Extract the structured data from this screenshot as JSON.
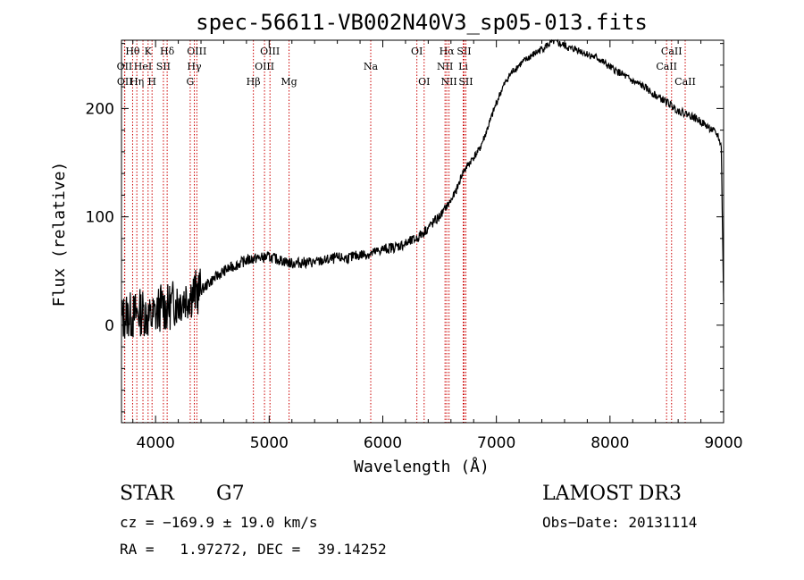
{
  "chart_data": {
    "type": "line",
    "title": "spec-56611-VB002N40V3_sp05-013.fits",
    "xlabel": "Wavelength (Å)",
    "ylabel": "Flux (relative)",
    "xlim": [
      3700,
      9000
    ],
    "ylim": [
      -90,
      263
    ],
    "x_ticks": [
      4000,
      5000,
      6000,
      7000,
      8000,
      9000
    ],
    "x_tick_labels": [
      "4000",
      "5000",
      "6000",
      "7000",
      "8000",
      "9000"
    ],
    "y_ticks": [
      0,
      100,
      200
    ],
    "y_tick_labels": [
      "0",
      "100",
      "200"
    ],
    "series": [
      {
        "name": "spectrum",
        "x": [
          3700,
          3750,
          3800,
          3850,
          3900,
          3950,
          4000,
          4050,
          4100,
          4150,
          4200,
          4250,
          4300,
          4350,
          4400,
          4500,
          4600,
          4700,
          4800,
          4900,
          5000,
          5100,
          5200,
          5300,
          5400,
          5500,
          5600,
          5700,
          5800,
          5900,
          6000,
          6100,
          6200,
          6300,
          6400,
          6500,
          6550,
          6600,
          6650,
          6700,
          6750,
          6800,
          6850,
          6900,
          6950,
          7000,
          7050,
          7100,
          7150,
          7200,
          7300,
          7400,
          7500,
          7550,
          7600,
          7650,
          7700,
          7800,
          7900,
          8000,
          8100,
          8200,
          8300,
          8400,
          8500,
          8600,
          8700,
          8800,
          8900,
          8950,
          8980,
          9000
        ],
        "y": [
          5,
          10,
          8,
          12,
          12,
          5,
          10,
          18,
          15,
          20,
          22,
          25,
          28,
          30,
          32,
          42,
          50,
          55,
          60,
          62,
          63,
          60,
          57,
          58,
          58,
          60,
          62,
          62,
          65,
          66,
          70,
          72,
          75,
          80,
          90,
          100,
          108,
          115,
          125,
          140,
          148,
          155,
          162,
          175,
          190,
          205,
          218,
          228,
          235,
          240,
          248,
          255,
          262,
          260,
          258,
          255,
          255,
          250,
          246,
          238,
          232,
          225,
          220,
          212,
          206,
          198,
          194,
          188,
          180,
          175,
          165,
          20
        ]
      }
    ],
    "line_markers": [
      {
        "label": "Hθ",
        "x": 3798,
        "row": 1
      },
      {
        "label": "OII",
        "x": 3727,
        "row": 2
      },
      {
        "label": "OII",
        "x": 3729,
        "row": 3
      },
      {
        "label": "K",
        "x": 3934,
        "row": 1
      },
      {
        "label": "HeI",
        "x": 3889,
        "row": 2
      },
      {
        "label": "Hη",
        "x": 3835,
        "row": 3
      },
      {
        "label": "SII",
        "x": 4069,
        "row": 2
      },
      {
        "label": "H",
        "x": 3969,
        "row": 3
      },
      {
        "label": "Hδ",
        "x": 4102,
        "row": 1
      },
      {
        "label": "OIII",
        "x": 4363,
        "row": 1
      },
      {
        "label": "Hγ",
        "x": 4341,
        "row": 2
      },
      {
        "label": "G",
        "x": 4305,
        "row": 3
      },
      {
        "label": "OIII",
        "x": 5007,
        "row": 1
      },
      {
        "label": "OIII",
        "x": 4959,
        "row": 2
      },
      {
        "label": "Hβ",
        "x": 4861,
        "row": 3
      },
      {
        "label": "Mg",
        "x": 5175,
        "row": 3
      },
      {
        "label": "Na",
        "x": 5894,
        "row": 2
      },
      {
        "label": "OI",
        "x": 6300,
        "row": 1
      },
      {
        "label": "OI",
        "x": 6364,
        "row": 3
      },
      {
        "label": "Hα",
        "x": 6563,
        "row": 1
      },
      {
        "label": "SII",
        "x": 6716,
        "row": 1
      },
      {
        "label": "NII",
        "x": 6548,
        "row": 2
      },
      {
        "label": "Li",
        "x": 6708,
        "row": 2
      },
      {
        "label": "NII",
        "x": 6583,
        "row": 3
      },
      {
        "label": "SII",
        "x": 6731,
        "row": 3
      },
      {
        "label": "CaII",
        "x": 8542,
        "row": 1
      },
      {
        "label": "CaII",
        "x": 8498,
        "row": 2
      },
      {
        "label": "CaII",
        "x": 8662,
        "row": 3
      }
    ]
  },
  "info": {
    "object_class": "STAR",
    "subclass": "G7",
    "survey": "LAMOST DR3",
    "velocity": "cz = −169.9 ± 19.0 km/s",
    "obs_date": "Obs−Date: 20131114",
    "coordinates": "RA =   1.97272, DEC =  39.14252"
  },
  "colors": {
    "spectrum": "#000000",
    "marker_line": "#cc0000"
  }
}
